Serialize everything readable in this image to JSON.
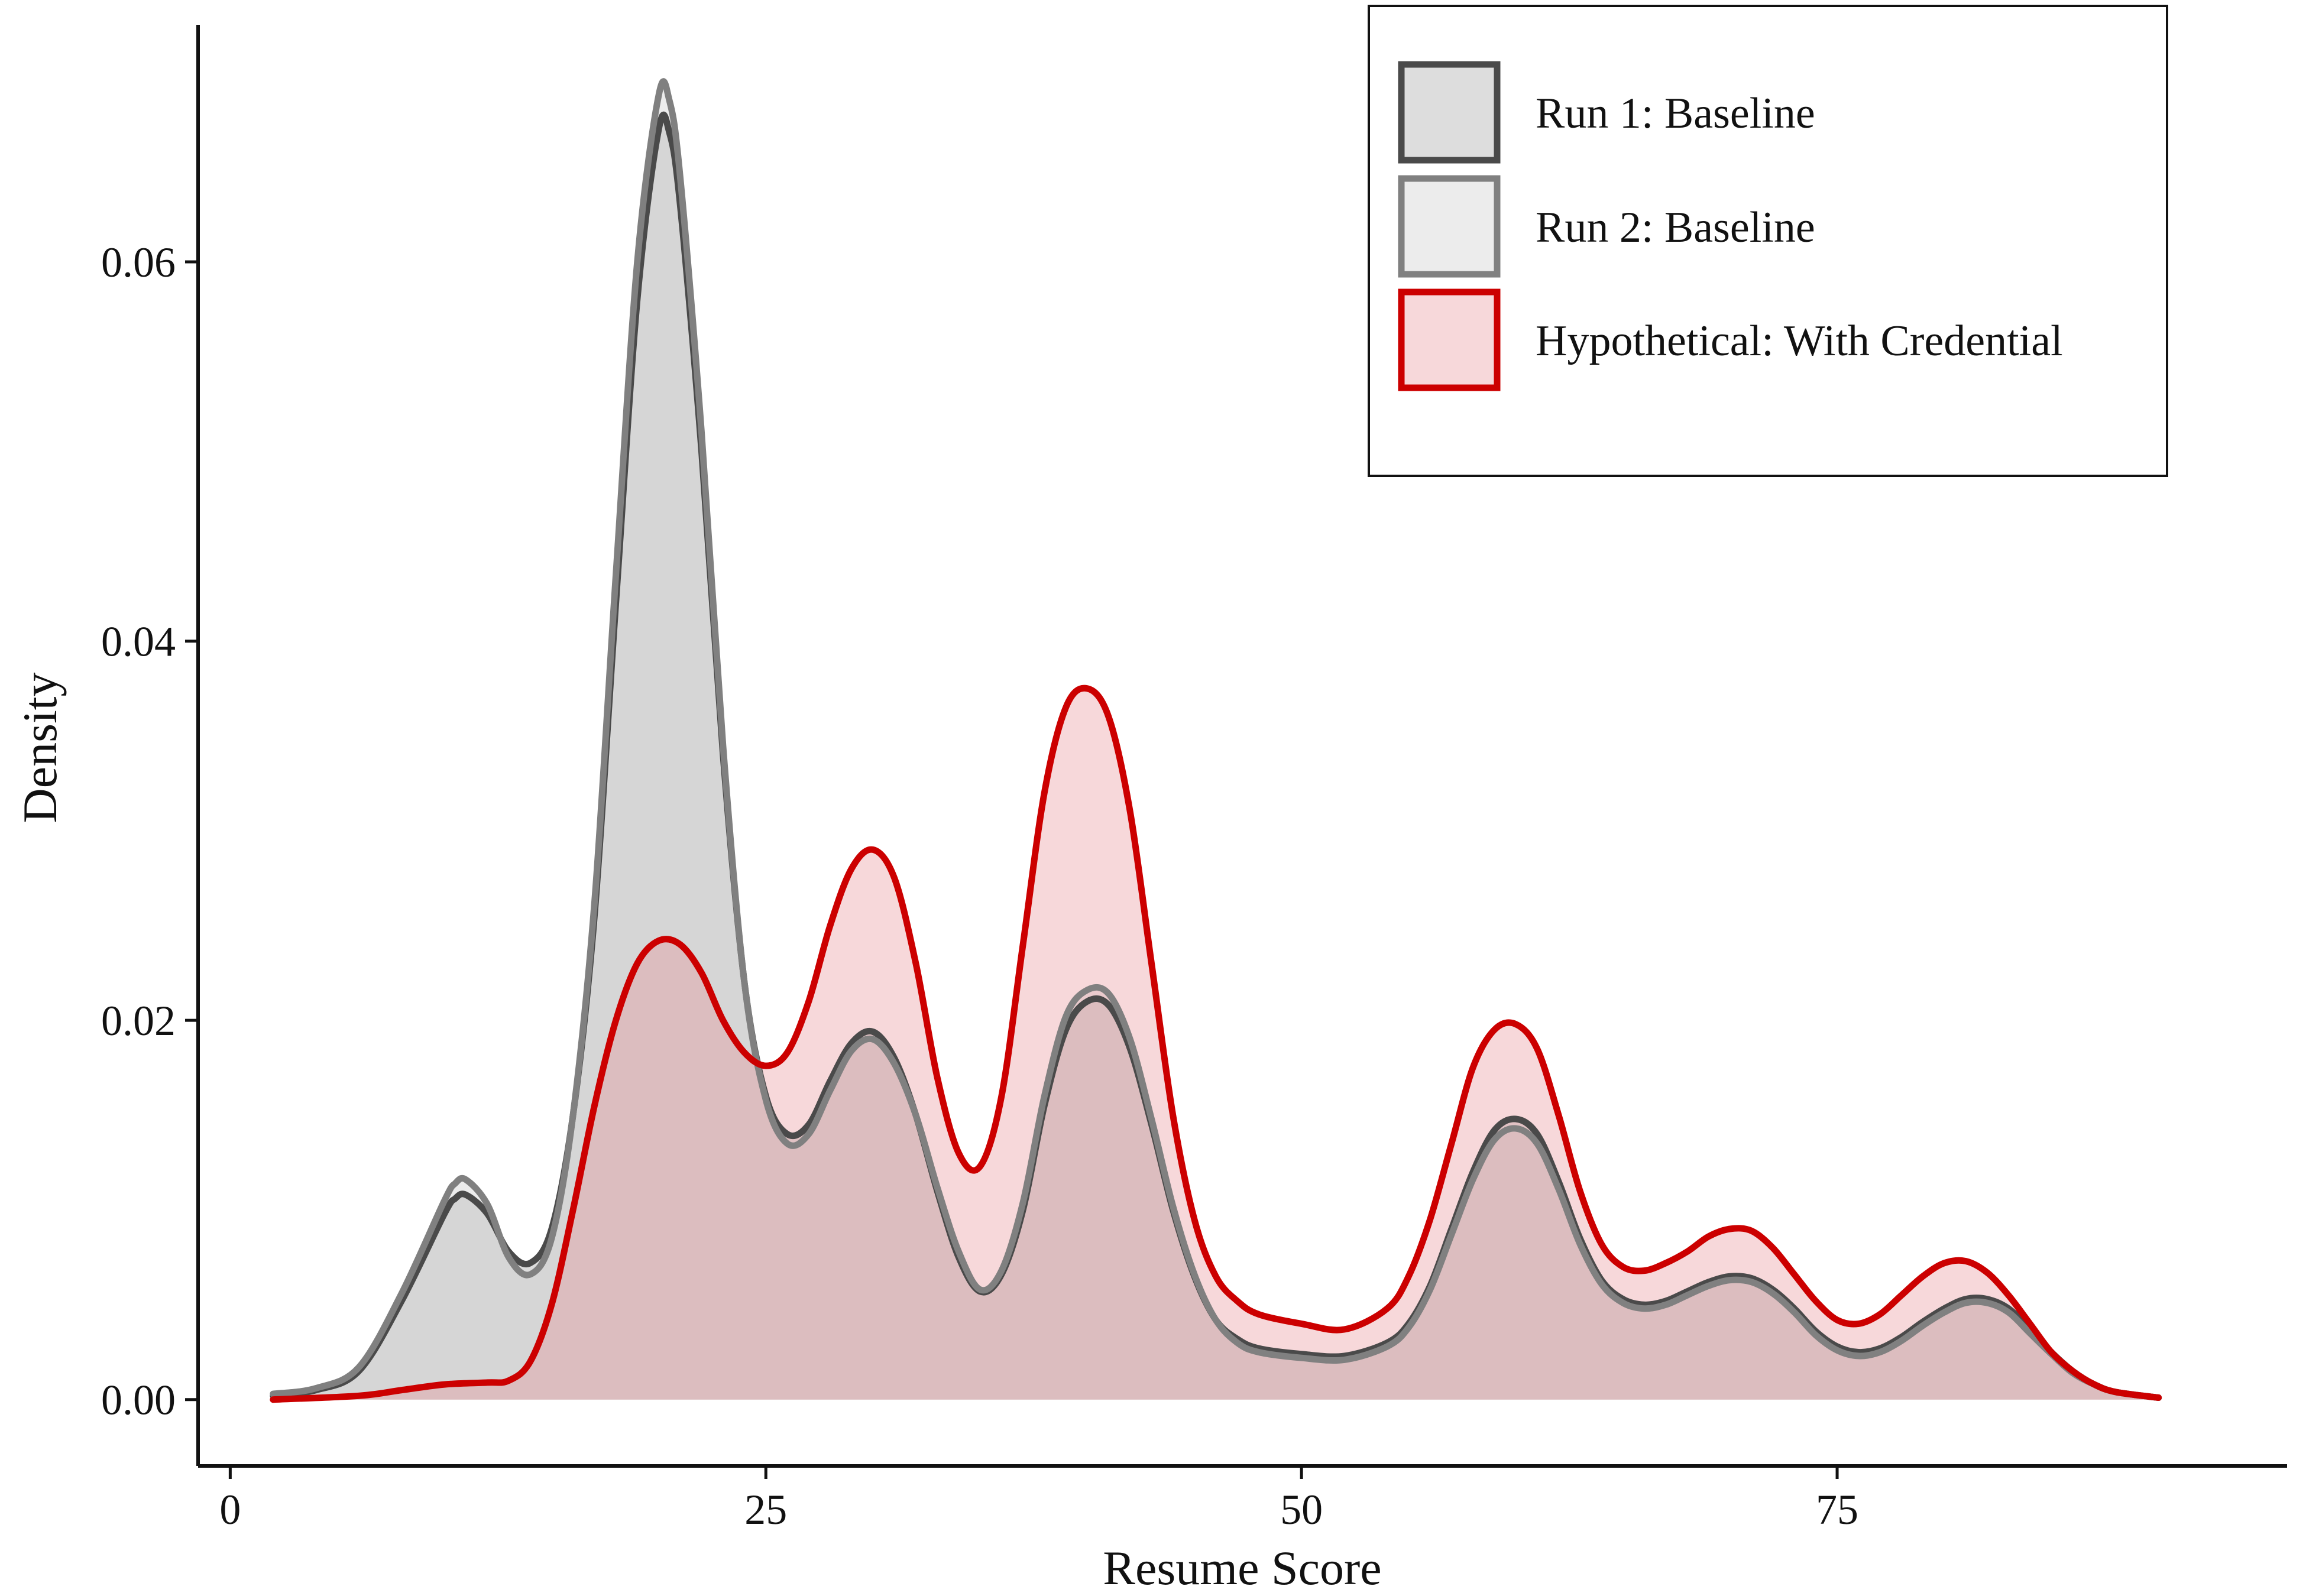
{
  "chart_data": {
    "type": "area",
    "xlabel": "Resume Score",
    "ylabel": "Density",
    "xlim": [
      -1.5,
      96
    ],
    "ylim": [
      -0.0035,
      0.0725
    ],
    "x_ticks": [
      0,
      25,
      50,
      75
    ],
    "x_tick_labels": [
      "0",
      "25",
      "50",
      "75"
    ],
    "y_ticks": [
      0.0,
      0.02,
      0.04,
      0.06
    ],
    "y_tick_labels": [
      "0.00",
      "0.02",
      "0.04",
      "0.06"
    ],
    "grid": false,
    "legend_position": "top-right",
    "series": [
      {
        "name": "Run 1: Baseline",
        "stroke": "#4a4a4a",
        "fill": "#9e9e9e",
        "fill_opacity": 0.35,
        "points": [
          [
            2,
            0.0002
          ],
          [
            4,
            0.0005
          ],
          [
            6,
            0.0015
          ],
          [
            8,
            0.0052
          ],
          [
            10,
            0.0098
          ],
          [
            10.5,
            0.0106
          ],
          [
            11,
            0.0108
          ],
          [
            12,
            0.0098
          ],
          [
            13,
            0.0078
          ],
          [
            14,
            0.0072
          ],
          [
            15,
            0.009
          ],
          [
            16,
            0.015
          ],
          [
            17,
            0.0255
          ],
          [
            18,
            0.042
          ],
          [
            19,
            0.058
          ],
          [
            20,
            0.067
          ],
          [
            20.5,
            0.0668
          ],
          [
            21,
            0.063
          ],
          [
            22,
            0.05
          ],
          [
            23,
            0.034
          ],
          [
            24,
            0.022
          ],
          [
            25,
            0.016
          ],
          [
            26,
            0.014
          ],
          [
            27,
            0.0145
          ],
          [
            28,
            0.0168
          ],
          [
            29,
            0.0188
          ],
          [
            30,
            0.0194
          ],
          [
            31,
            0.018
          ],
          [
            32,
            0.015
          ],
          [
            33,
            0.011
          ],
          [
            34,
            0.0075
          ],
          [
            35,
            0.0057
          ],
          [
            36,
            0.0066
          ],
          [
            37,
            0.01
          ],
          [
            38,
            0.0155
          ],
          [
            39,
            0.0195
          ],
          [
            40,
            0.021
          ],
          [
            41,
            0.0208
          ],
          [
            42,
            0.0185
          ],
          [
            43,
            0.0145
          ],
          [
            44,
            0.01
          ],
          [
            45,
            0.0065
          ],
          [
            46,
            0.0042
          ],
          [
            47,
            0.0032
          ],
          [
            48,
            0.0027
          ],
          [
            50,
            0.0024
          ],
          [
            52,
            0.0023
          ],
          [
            54,
            0.003
          ],
          [
            55,
            0.004
          ],
          [
            56,
            0.006
          ],
          [
            57,
            0.009
          ],
          [
            58,
            0.012
          ],
          [
            59,
            0.0142
          ],
          [
            60,
            0.0148
          ],
          [
            61,
            0.014
          ],
          [
            62,
            0.0115
          ],
          [
            63,
            0.0085
          ],
          [
            64,
            0.0063
          ],
          [
            65,
            0.0053
          ],
          [
            66,
            0.005
          ],
          [
            67,
            0.0052
          ],
          [
            68,
            0.0057
          ],
          [
            69,
            0.0062
          ],
          [
            70,
            0.0065
          ],
          [
            71,
            0.0064
          ],
          [
            72,
            0.0058
          ],
          [
            73,
            0.0048
          ],
          [
            74,
            0.0036
          ],
          [
            75,
            0.0028
          ],
          [
            76,
            0.0025
          ],
          [
            77,
            0.0027
          ],
          [
            78,
            0.0033
          ],
          [
            79,
            0.0041
          ],
          [
            80,
            0.0048
          ],
          [
            81,
            0.0053
          ],
          [
            82,
            0.0053
          ],
          [
            83,
            0.0048
          ],
          [
            84,
            0.0037
          ],
          [
            85,
            0.0025
          ],
          [
            86,
            0.0015
          ],
          [
            87,
            0.0008
          ],
          [
            88,
            0.0004
          ],
          [
            90,
            0.0001
          ]
        ]
      },
      {
        "name": "Run 2: Baseline",
        "stroke": "#808080",
        "fill": "#c8c8c8",
        "fill_opacity": 0.35,
        "points": [
          [
            2,
            0.0003
          ],
          [
            4,
            0.0006
          ],
          [
            6,
            0.0017
          ],
          [
            8,
            0.0056
          ],
          [
            10,
            0.0105
          ],
          [
            10.5,
            0.0114
          ],
          [
            11,
            0.0116
          ],
          [
            12,
            0.0103
          ],
          [
            13,
            0.0075
          ],
          [
            14,
            0.0066
          ],
          [
            15,
            0.0085
          ],
          [
            16,
            0.015
          ],
          [
            17,
            0.0262
          ],
          [
            18,
            0.0435
          ],
          [
            19,
            0.06
          ],
          [
            20,
            0.0688
          ],
          [
            20.5,
            0.0685
          ],
          [
            21,
            0.0645
          ],
          [
            22,
            0.051
          ],
          [
            23,
            0.0345
          ],
          [
            24,
            0.022
          ],
          [
            25,
            0.0158
          ],
          [
            26,
            0.0135
          ],
          [
            27,
            0.014
          ],
          [
            28,
            0.0163
          ],
          [
            29,
            0.0184
          ],
          [
            30,
            0.019
          ],
          [
            31,
            0.0177
          ],
          [
            32,
            0.015
          ],
          [
            33,
            0.0112
          ],
          [
            34,
            0.0078
          ],
          [
            35,
            0.0058
          ],
          [
            36,
            0.0068
          ],
          [
            37,
            0.0104
          ],
          [
            38,
            0.016
          ],
          [
            39,
            0.0202
          ],
          [
            40,
            0.0216
          ],
          [
            41,
            0.0214
          ],
          [
            42,
            0.019
          ],
          [
            43,
            0.0148
          ],
          [
            44,
            0.0102
          ],
          [
            45,
            0.0066
          ],
          [
            46,
            0.0042
          ],
          [
            47,
            0.003
          ],
          [
            48,
            0.0025
          ],
          [
            50,
            0.0022
          ],
          [
            52,
            0.0021
          ],
          [
            54,
            0.0028
          ],
          [
            55,
            0.0038
          ],
          [
            56,
            0.0058
          ],
          [
            57,
            0.0087
          ],
          [
            58,
            0.0116
          ],
          [
            59,
            0.0137
          ],
          [
            60,
            0.0143
          ],
          [
            61,
            0.0135
          ],
          [
            62,
            0.0111
          ],
          [
            63,
            0.0082
          ],
          [
            64,
            0.0061
          ],
          [
            65,
            0.0051
          ],
          [
            66,
            0.0048
          ],
          [
            67,
            0.005
          ],
          [
            68,
            0.0055
          ],
          [
            69,
            0.006
          ],
          [
            70,
            0.0063
          ],
          [
            71,
            0.0062
          ],
          [
            72,
            0.0056
          ],
          [
            73,
            0.0046
          ],
          [
            74,
            0.0034
          ],
          [
            75,
            0.0026
          ],
          [
            76,
            0.0023
          ],
          [
            77,
            0.0025
          ],
          [
            78,
            0.0031
          ],
          [
            79,
            0.0039
          ],
          [
            80,
            0.0046
          ],
          [
            81,
            0.0051
          ],
          [
            82,
            0.0051
          ],
          [
            83,
            0.0046
          ],
          [
            84,
            0.0035
          ],
          [
            85,
            0.0024
          ],
          [
            86,
            0.0014
          ],
          [
            87,
            0.0008
          ],
          [
            88,
            0.0004
          ],
          [
            90,
            0.0001
          ]
        ]
      },
      {
        "name": "Hypothetical: With Credential",
        "stroke": "#cc0000",
        "fill": "#e88e96",
        "fill_opacity": 0.35,
        "points": [
          [
            2,
            0.0
          ],
          [
            6,
            0.0002
          ],
          [
            8,
            0.0005
          ],
          [
            10,
            0.0008
          ],
          [
            12,
            0.0009
          ],
          [
            13,
            0.001
          ],
          [
            14,
            0.002
          ],
          [
            15,
            0.005
          ],
          [
            16,
            0.01
          ],
          [
            17,
            0.0155
          ],
          [
            18,
            0.02
          ],
          [
            19,
            0.023
          ],
          [
            20,
            0.0242
          ],
          [
            21,
            0.024
          ],
          [
            22,
            0.0225
          ],
          [
            23,
            0.02
          ],
          [
            24,
            0.0183
          ],
          [
            25,
            0.0176
          ],
          [
            26,
            0.0183
          ],
          [
            27,
            0.021
          ],
          [
            28,
            0.025
          ],
          [
            29,
            0.028
          ],
          [
            30,
            0.029
          ],
          [
            31,
            0.0275
          ],
          [
            32,
            0.023
          ],
          [
            33,
            0.017
          ],
          [
            34,
            0.013
          ],
          [
            35,
            0.0123
          ],
          [
            36,
            0.016
          ],
          [
            37,
            0.024
          ],
          [
            38,
            0.032
          ],
          [
            39,
            0.0365
          ],
          [
            40,
            0.0375
          ],
          [
            41,
            0.036
          ],
          [
            42,
            0.031
          ],
          [
            43,
            0.023
          ],
          [
            44,
            0.015
          ],
          [
            45,
            0.0095
          ],
          [
            46,
            0.0065
          ],
          [
            47,
            0.0052
          ],
          [
            48,
            0.0045
          ],
          [
            50,
            0.004
          ],
          [
            52,
            0.0037
          ],
          [
            54,
            0.0048
          ],
          [
            55,
            0.0065
          ],
          [
            56,
            0.0095
          ],
          [
            57,
            0.0135
          ],
          [
            58,
            0.0175
          ],
          [
            59,
            0.0195
          ],
          [
            60,
            0.0198
          ],
          [
            61,
            0.0185
          ],
          [
            62,
            0.015
          ],
          [
            63,
            0.011
          ],
          [
            64,
            0.0082
          ],
          [
            65,
            0.007
          ],
          [
            66,
            0.0068
          ],
          [
            67,
            0.0072
          ],
          [
            68,
            0.0078
          ],
          [
            69,
            0.0086
          ],
          [
            70,
            0.009
          ],
          [
            71,
            0.0089
          ],
          [
            72,
            0.008
          ],
          [
            73,
            0.0066
          ],
          [
            74,
            0.0052
          ],
          [
            75,
            0.0042
          ],
          [
            76,
            0.004
          ],
          [
            77,
            0.0045
          ],
          [
            78,
            0.0055
          ],
          [
            79,
            0.0065
          ],
          [
            80,
            0.0072
          ],
          [
            81,
            0.0073
          ],
          [
            82,
            0.0067
          ],
          [
            83,
            0.0055
          ],
          [
            84,
            0.004
          ],
          [
            85,
            0.0025
          ],
          [
            86,
            0.0015
          ],
          [
            87,
            0.0008
          ],
          [
            88,
            0.0004
          ],
          [
            90,
            0.0001
          ]
        ]
      }
    ]
  }
}
